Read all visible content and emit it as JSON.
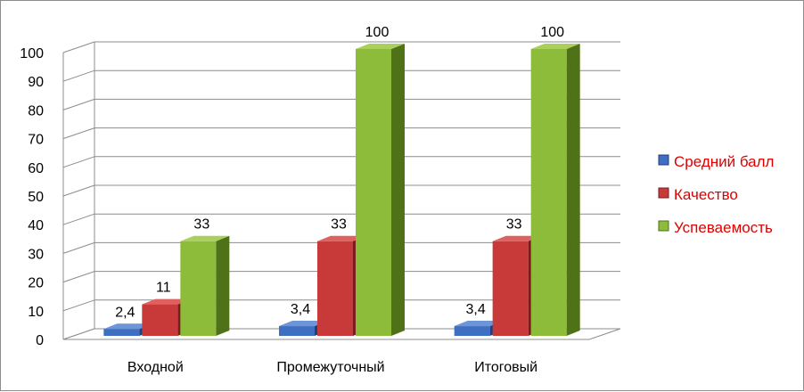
{
  "chart_data": {
    "type": "bar",
    "title": "",
    "xlabel": "",
    "ylabel": "",
    "ylim": [
      0,
      100
    ],
    "yticks": [
      0,
      10,
      20,
      30,
      40,
      50,
      60,
      70,
      80,
      90,
      100
    ],
    "grid": true,
    "legend_position": "right",
    "categories": [
      "Входной",
      "Промежуточный",
      "Итоговый"
    ],
    "series": [
      {
        "name": "Средний балл",
        "values": [
          2.4,
          3.4,
          3.4
        ],
        "labels": [
          "2,4",
          "3,4",
          "3,4"
        ],
        "color": "#3f6fc0",
        "color_side": "#1f3f7e",
        "color_top": "#6d95d8"
      },
      {
        "name": "Качество",
        "values": [
          11,
          33,
          33
        ],
        "labels": [
          "11",
          "33",
          "33"
        ],
        "color": "#c8393a",
        "color_side": "#7a1c1c",
        "color_top": "#e06060"
      },
      {
        "name": "Успеваемость",
        "values": [
          33,
          100,
          100
        ],
        "labels": [
          "33",
          "100",
          "100"
        ],
        "color": "#8dbb3a",
        "color_side": "#4f7219",
        "color_top": "#a9d05a"
      }
    ]
  }
}
